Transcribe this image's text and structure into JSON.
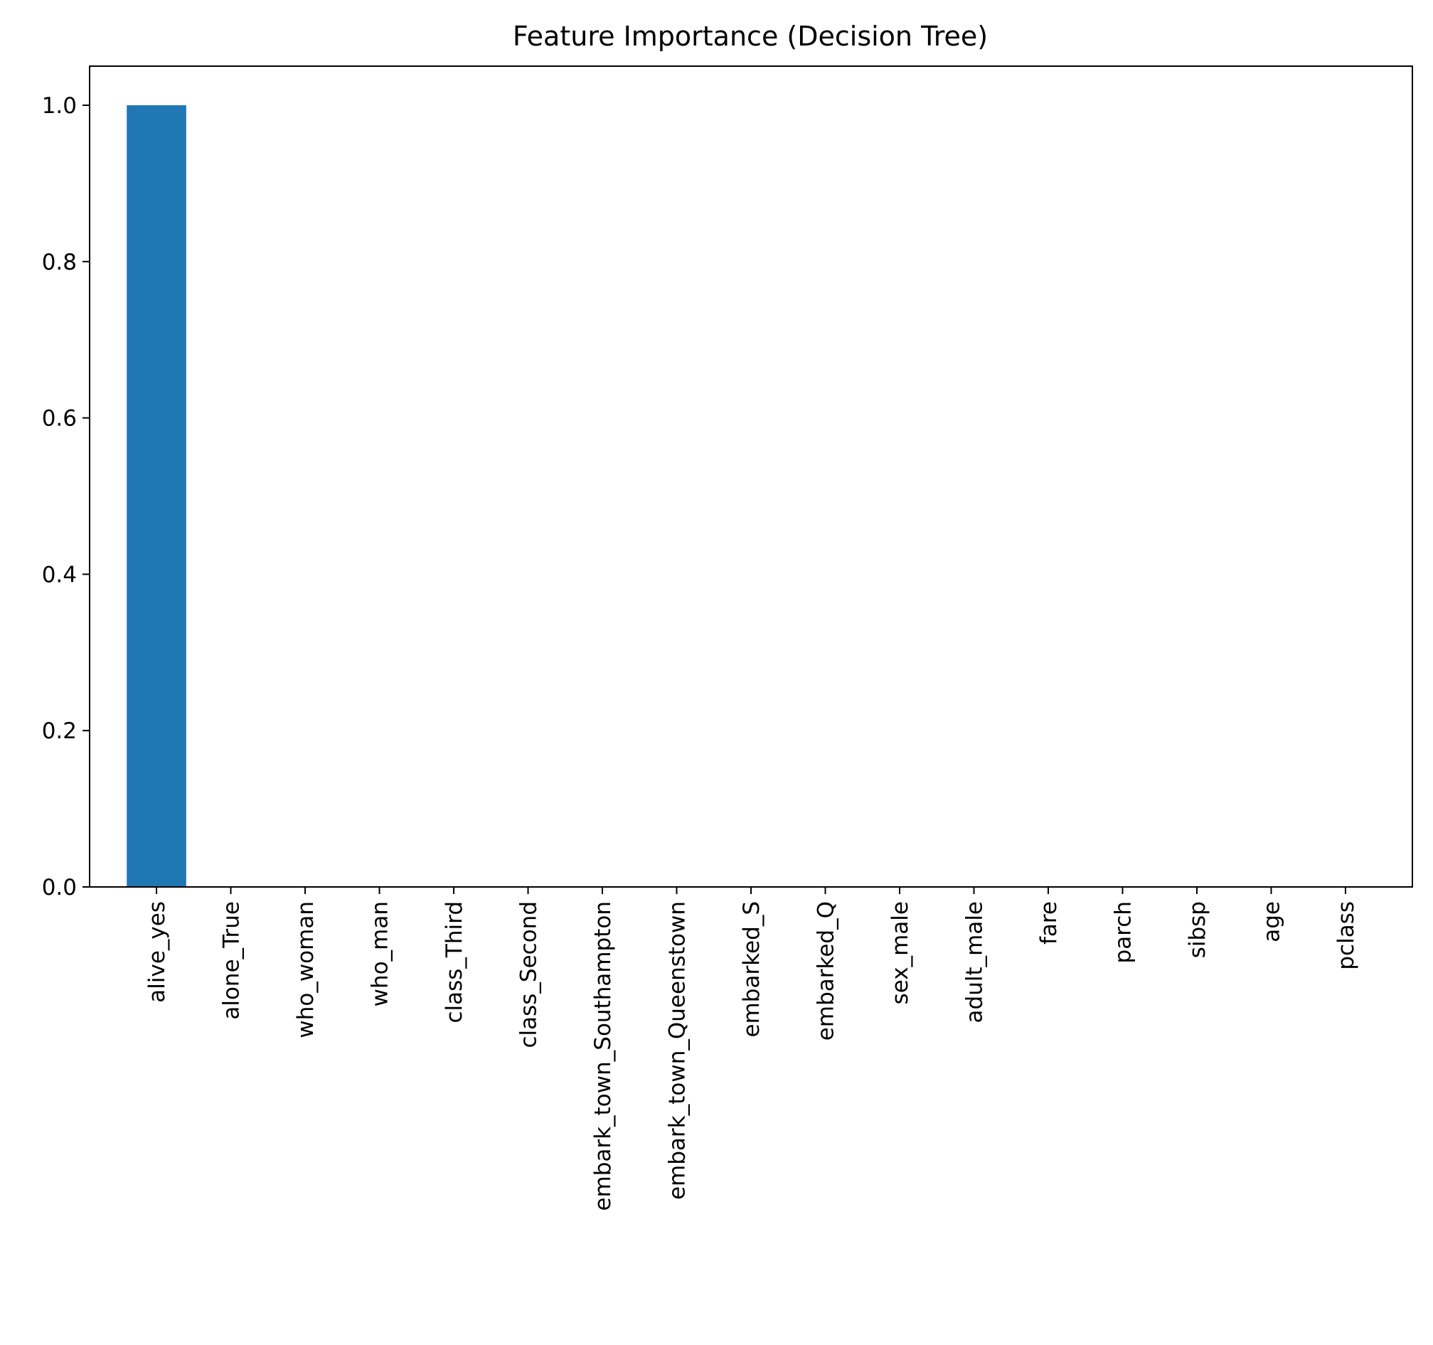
{
  "chart_data": {
    "type": "bar",
    "title": "Feature Importance (Decision Tree)",
    "xlabel": "",
    "ylabel": "",
    "categories": [
      "alive_yes",
      "alone_True",
      "who_woman",
      "who_man",
      "class_Third",
      "class_Second",
      "embark_town_Southampton",
      "embark_town_Queenstown",
      "embarked_S",
      "embarked_Q",
      "sex_male",
      "adult_male",
      "fare",
      "parch",
      "sibsp",
      "age",
      "pclass"
    ],
    "values": [
      1.0,
      0.0,
      0.0,
      0.0,
      0.0,
      0.0,
      0.0,
      0.0,
      0.0,
      0.0,
      0.0,
      0.0,
      0.0,
      0.0,
      0.0,
      0.0,
      0.0
    ],
    "ylim": [
      0,
      1.05
    ],
    "yticks": [
      0.0,
      0.2,
      0.4,
      0.6,
      0.8,
      1.0
    ],
    "ytick_labels": [
      "0.0",
      "0.2",
      "0.4",
      "0.6",
      "0.8",
      "1.0"
    ],
    "grid": false,
    "legend": "none",
    "bar_color": "#1f77b4"
  }
}
